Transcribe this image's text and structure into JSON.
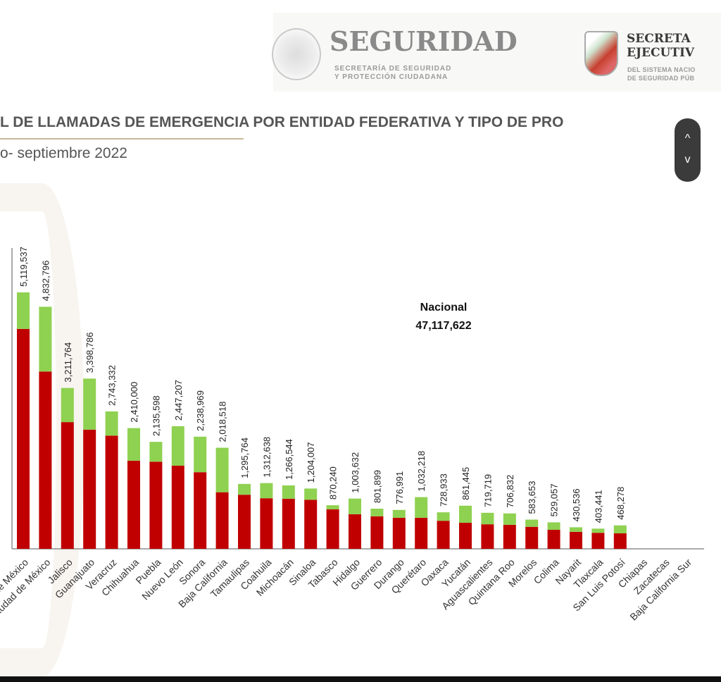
{
  "header": {
    "seguridad": "SEGURIDAD",
    "seguridad_sub1": "SECRETARÍA DE SEGURIDAD",
    "seguridad_sub2": "Y PROTECCIÓN CIUDADANA",
    "secretariado1": "SECRETA",
    "secretariado2": "EJECUTIV",
    "secretariado_sub1": "DEL SISTEMA NACIO",
    "secretariado_sub2": "DE SEGURIDAD PÚB"
  },
  "title": "L DE LLAMADAS DE EMERGENCIA POR ENTIDAD FEDERATIVA Y TIPO DE PRO",
  "subtitle": "o- septiembre 2022",
  "scroll": {
    "up": "^",
    "down": "v"
  },
  "nacional": {
    "label": "Nacional",
    "value": "47,117,622"
  },
  "chart_data": {
    "type": "bar",
    "stacked": true,
    "colors": {
      "base": "#c00000",
      "top": "#8fd150",
      "axis": "#555555"
    },
    "categories": [
      "Estado de México",
      "Ciudad de México",
      "Jalisco",
      "Guanajuato",
      "Veracruz",
      "Chihuahua",
      "Puebla",
      "Nuevo León",
      "Sonora",
      "Baja California",
      "Tamaulipas",
      "Coahuila",
      "Michoacán",
      "Sinaloa",
      "Tabasco",
      "Hidalgo",
      "Guerrero",
      "Durango",
      "Querétaro",
      "Oaxaca",
      "Yucatán",
      "Aguascalientes",
      "Quintana Roo",
      "Morelos",
      "Colima",
      "Nayarit",
      "Tlaxcala",
      "San Luis Potosí",
      "Chiapas",
      "Zacatecas",
      "Baja California Sur"
    ],
    "totals": [
      5119537,
      4832796,
      3211764,
      3398786,
      2743332,
      2410000,
      2135598,
      2447207,
      2238969,
      2018518,
      1295764,
      1312638,
      1266544,
      1204007,
      870240,
      1003632,
      801899,
      776991,
      1032218,
      728933,
      861445,
      719719,
      706832,
      583653,
      529057,
      430536,
      403441,
      468278,
      null,
      null,
      null
    ],
    "total_labels": [
      "5,119,537",
      "4,832,796",
      "3,211,764",
      "3,398,786",
      "2,743,332",
      "2,410,000",
      "2,135,598",
      "2,447,207",
      "2,238,969",
      "2,018,518",
      "1,295,764",
      "1,312,638",
      "1,266,544",
      "1,204,007",
      "870,240",
      "1,003,632",
      "801,899",
      "776,991",
      "1,032,218",
      "728,933",
      "861,445",
      "719,719",
      "706,832",
      "583,653",
      "529,057",
      "430,536",
      "403,441",
      "468,278"
    ],
    "series": [
      {
        "values": [
          4390000,
          3540000,
          2530000,
          2380000,
          2260000,
          1760000,
          1740000,
          1660000,
          1530000,
          1130000,
          1080000,
          1010000,
          1000000,
          980000,
          790000,
          690000,
          650000,
          620000,
          620000,
          560000,
          520000,
          490000,
          480000,
          440000,
          380000,
          340000,
          320000,
          310000,
          null,
          null,
          null
        ]
      },
      {
        "values": [
          729537,
          1292796,
          681764,
          1018786,
          483332,
          650000,
          395598,
          787207,
          708969,
          888518,
          215764,
          302638,
          266544,
          224007,
          80240,
          313632,
          151899,
          156991,
          412218,
          168933,
          341445,
          229719,
          226832,
          143653,
          149057,
          90536,
          83441,
          158278,
          null,
          null,
          null
        ]
      }
    ],
    "ylim": [
      0,
      5119537
    ],
    "grid": false,
    "legend": "none"
  }
}
